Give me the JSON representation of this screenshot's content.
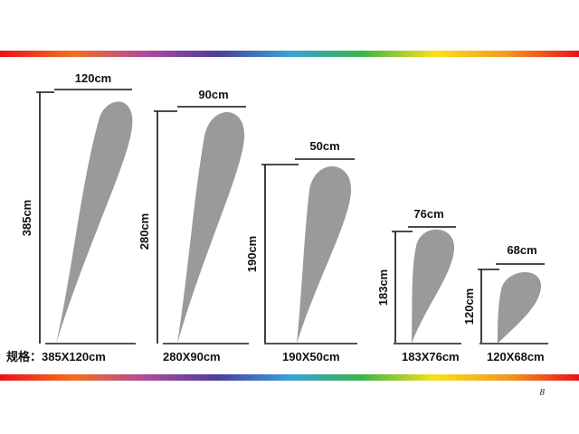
{
  "colors": {
    "flag_fill": "#9a9a9a",
    "line": "#111111",
    "rainbow": [
      "#e8121c",
      "#f3701f",
      "#b04a9a",
      "#4a3f99",
      "#3aa0d8",
      "#3bb54a",
      "#f7e21b",
      "#f39a1e",
      "#e8121c"
    ]
  },
  "spec_prefix": "规格：",
  "page_number": "8",
  "flags": [
    {
      "height_label": "385cm",
      "width_label": "120cm",
      "size_label": "385X120cm"
    },
    {
      "height_label": "280cm",
      "width_label": "90cm",
      "size_label": "280X90cm"
    },
    {
      "height_label": "190cm",
      "width_label": "50cm",
      "size_label": "190X50cm"
    },
    {
      "height_label": "183cm",
      "width_label": "76cm",
      "size_label": "183X76cm"
    },
    {
      "height_label": "120cm",
      "width_label": "68cm",
      "size_label": "120X68cm"
    }
  ]
}
